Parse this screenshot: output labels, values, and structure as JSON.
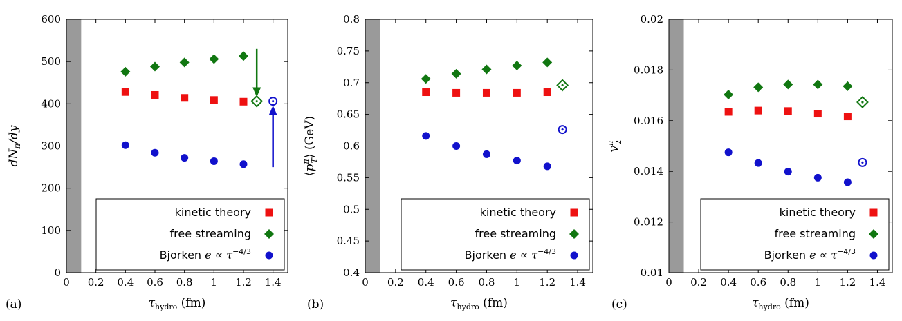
{
  "chart_data": [
    {
      "type": "scatter",
      "panel_label": "(a)",
      "xlabel": "τ_hydro (fm)",
      "ylabel": "dN_π/dy",
      "xlim": [
        0,
        1.5
      ],
      "ylim": [
        0,
        600
      ],
      "xticks": [
        0,
        0.2,
        0.4,
        0.6,
        0.8,
        1,
        1.2,
        1.4
      ],
      "xtick_labels": [
        "0",
        "0.2",
        "0.4",
        "0.6",
        "0.8",
        "1",
        "1.2",
        "1.4"
      ],
      "yticks": [
        0,
        100,
        200,
        300,
        400,
        500,
        600
      ],
      "ytick_labels": [
        "0",
        "100",
        "200",
        "300",
        "400",
        "500",
        "600"
      ],
      "shaded_band": [
        0,
        0.1
      ],
      "legend": "bottom-right",
      "series": [
        {
          "name": "kinetic theory",
          "marker": "square",
          "color": "#ee1111",
          "x": [
            0.4,
            0.6,
            0.8,
            1.0,
            1.2
          ],
          "y": [
            428,
            421,
            414,
            409,
            405
          ]
        },
        {
          "name": "free streaming",
          "marker": "diamond",
          "color": "#117711",
          "x": [
            0.4,
            0.6,
            0.8,
            1.0,
            1.2
          ],
          "y": [
            476,
            488,
            498,
            506,
            513
          ],
          "open_point": {
            "x": 1.29,
            "y": 406
          }
        },
        {
          "name": "Bjorken e ∝ τ^(-4/3)",
          "marker": "circle",
          "color": "#1111cc",
          "x": [
            0.4,
            0.6,
            0.8,
            1.0,
            1.2
          ],
          "y": [
            302,
            284,
            272,
            264,
            257
          ],
          "open_point": {
            "x": 1.4,
            "y": 406
          }
        }
      ],
      "arrows": [
        {
          "color": "#117711",
          "x": 1.29,
          "from_y": 530,
          "to_y": 416
        },
        {
          "color": "#1111cc",
          "x": 1.4,
          "from_y": 250,
          "to_y": 396
        }
      ]
    },
    {
      "type": "scatter",
      "panel_label": "(b)",
      "xlabel": "τ_hydro (fm)",
      "ylabel": "⟨p_T^π⟩ (GeV)",
      "xlim": [
        0,
        1.5
      ],
      "ylim": [
        0.4,
        0.8
      ],
      "xticks": [
        0,
        0.2,
        0.4,
        0.6,
        0.8,
        1,
        1.2,
        1.4
      ],
      "xtick_labels": [
        "0",
        "0.2",
        "0.4",
        "0.6",
        "0.8",
        "1",
        "1.2",
        "1.4"
      ],
      "yticks": [
        0.4,
        0.45,
        0.5,
        0.55,
        0.6,
        0.65,
        0.7,
        0.75,
        0.8
      ],
      "ytick_labels": [
        "0.4",
        "0.45",
        "0.5",
        "0.55",
        "0.6",
        "0.65",
        "0.7",
        "0.75",
        "0.8"
      ],
      "shaded_band": [
        0,
        0.1
      ],
      "legend": "bottom-right",
      "series": [
        {
          "name": "kinetic theory",
          "marker": "square",
          "color": "#ee1111",
          "x": [
            0.4,
            0.6,
            0.8,
            1.0,
            1.2
          ],
          "y": [
            0.685,
            0.684,
            0.684,
            0.684,
            0.685
          ]
        },
        {
          "name": "free streaming",
          "marker": "diamond",
          "color": "#117711",
          "x": [
            0.4,
            0.6,
            0.8,
            1.0,
            1.2
          ],
          "y": [
            0.706,
            0.714,
            0.721,
            0.727,
            0.732
          ],
          "open_point": {
            "x": 1.3,
            "y": 0.696
          }
        },
        {
          "name": "Bjorken e ∝ τ^(-4/3)",
          "marker": "circle",
          "color": "#1111cc",
          "x": [
            0.4,
            0.6,
            0.8,
            1.0,
            1.2
          ],
          "y": [
            0.616,
            0.6,
            0.587,
            0.577,
            0.568
          ],
          "open_point": {
            "x": 1.3,
            "y": 0.626
          }
        }
      ],
      "arrows": []
    },
    {
      "type": "scatter",
      "panel_label": "(c)",
      "xlabel": "τ_hydro (fm)",
      "ylabel": "v_2^π",
      "xlim": [
        0,
        1.5
      ],
      "ylim": [
        0.01,
        0.02
      ],
      "xticks": [
        0,
        0.2,
        0.4,
        0.6,
        0.8,
        1,
        1.2,
        1.4
      ],
      "xtick_labels": [
        "0",
        "0.2",
        "0.4",
        "0.6",
        "0.8",
        "1",
        "1.2",
        "1.4"
      ],
      "yticks": [
        0.01,
        0.012,
        0.014,
        0.016,
        0.018,
        0.02
      ],
      "ytick_labels": [
        "0.01",
        "0.012",
        "0.014",
        "0.016",
        "0.018",
        "0.02"
      ],
      "shaded_band": [
        0,
        0.1
      ],
      "legend": "bottom-right",
      "series": [
        {
          "name": "kinetic theory",
          "marker": "square",
          "color": "#ee1111",
          "x": [
            0.4,
            0.6,
            0.8,
            1.0,
            1.2
          ],
          "y": [
            0.01635,
            0.0164,
            0.01638,
            0.01628,
            0.01617
          ]
        },
        {
          "name": "free streaming",
          "marker": "diamond",
          "color": "#117711",
          "x": [
            0.4,
            0.6,
            0.8,
            1.0,
            1.2
          ],
          "y": [
            0.01703,
            0.01732,
            0.01743,
            0.01743,
            0.01736
          ],
          "open_point": {
            "x": 1.3,
            "y": 0.01673
          }
        },
        {
          "name": "Bjorken e ∝ τ^(-4/3)",
          "marker": "circle",
          "color": "#1111cc",
          "x": [
            0.4,
            0.6,
            0.8,
            1.0,
            1.2
          ],
          "y": [
            0.01475,
            0.01433,
            0.01399,
            0.01375,
            0.01357
          ],
          "open_point": {
            "x": 1.3,
            "y": 0.01435
          }
        }
      ],
      "arrows": []
    }
  ]
}
